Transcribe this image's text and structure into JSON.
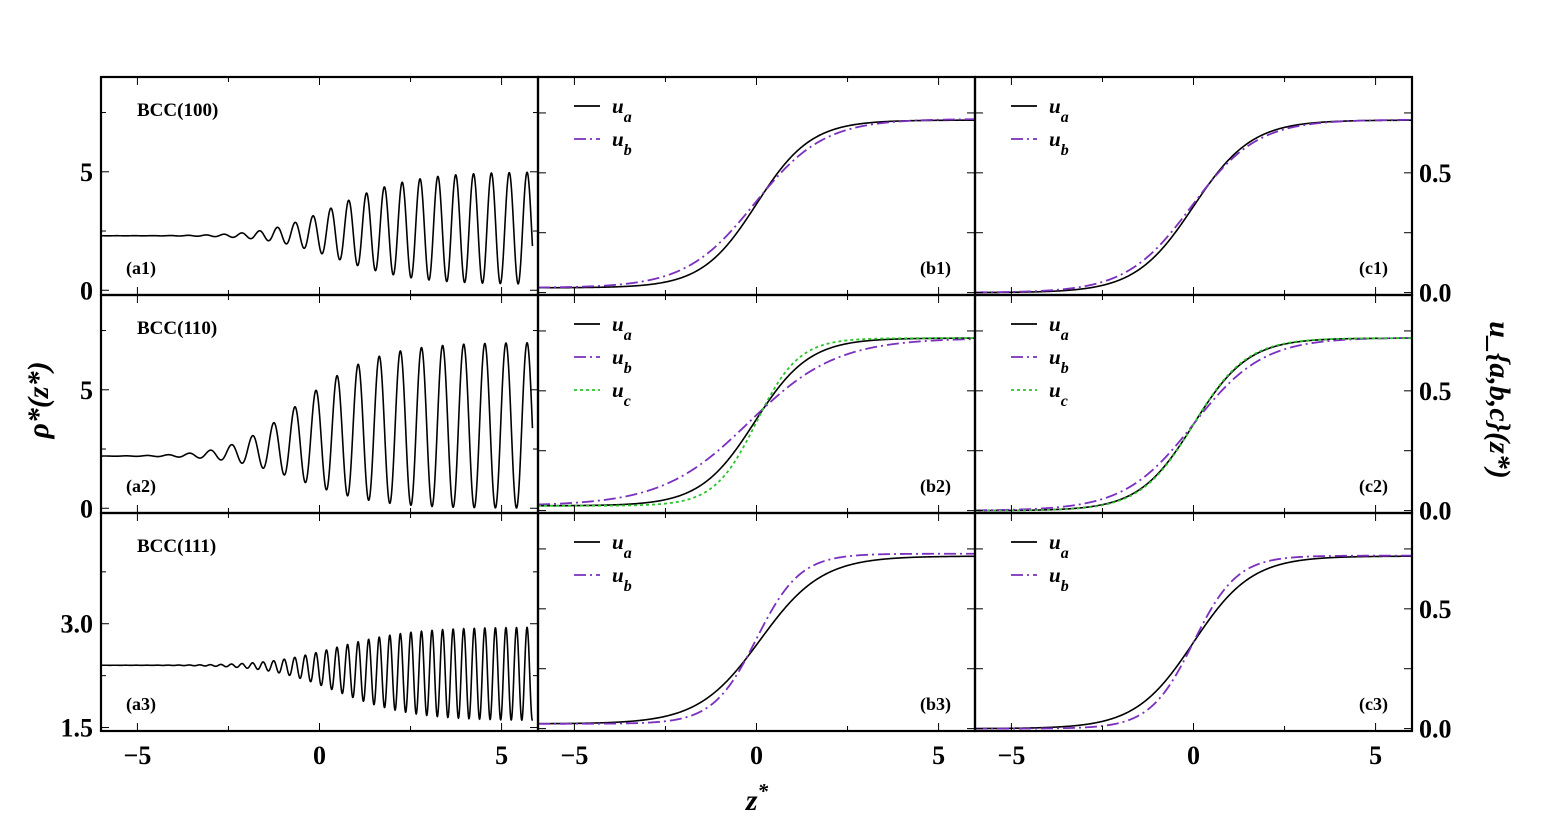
{
  "chart_data": {
    "type": "line",
    "xlabel": "z*",
    "ylabel_left": "ρ*(z*)",
    "ylabel_right": "u_{a,b,c}(z*)",
    "xlim": [
      -6.0,
      6.0
    ],
    "x_ticks": [
      -5,
      0,
      5
    ],
    "x_tick_labels": [
      "−5",
      "0",
      "5"
    ],
    "grid": false,
    "legend_position": "top-left",
    "colors": {
      "u_a": "#000000",
      "u_b": "#7B2FBE",
      "u_c": "#2DC42D",
      "rho": "#000000"
    },
    "rows": [
      {
        "title": "BCC(100)",
        "density": {
          "label": "(a1)",
          "ylim": [
            -0.2,
            9.0
          ],
          "y_ticks": [
            0,
            5
          ],
          "y_tick_labels": [
            "0",
            "5"
          ],
          "liquid_value": 2.3,
          "peak_max": 5.0,
          "trough_min": 0.25,
          "period": 0.49,
          "interface_center": 0.0
        },
        "order_b": {
          "label": "(b1)",
          "ylim": [
            -0.01,
            0.9
          ],
          "legend": [
            "u_a",
            "u_b"
          ],
          "series": [
            {
              "name": "u_a",
              "low": 0.02,
              "high": 0.72,
              "center": 0.0,
              "width": 0.75
            },
            {
              "name": "u_b",
              "low": 0.02,
              "high": 0.725,
              "center": -0.05,
              "width": 0.95
            }
          ]
        },
        "order_c": {
          "label": "(c1)",
          "ylim": [
            -0.01,
            0.9
          ],
          "y_ticks": [
            0.0,
            0.5
          ],
          "y_tick_labels": [
            "0.0",
            "0.5"
          ],
          "legend": [
            "u_a",
            "u_b"
          ],
          "series": [
            {
              "name": "u_a",
              "low": 0.0,
              "high": 0.72,
              "center": 0.0,
              "width": 0.8
            },
            {
              "name": "u_b",
              "low": 0.0,
              "high": 0.722,
              "center": -0.05,
              "width": 0.9
            }
          ]
        }
      },
      {
        "title": "BCC(110)",
        "density": {
          "label": "(a2)",
          "ylim": [
            -0.2,
            9.0
          ],
          "y_ticks": [
            0,
            5
          ],
          "y_tick_labels": [
            "0",
            "5"
          ],
          "liquid_value": 2.2,
          "peak_max": 7.0,
          "trough_min": 0.0,
          "period": 0.58,
          "interface_center": -1.0
        },
        "order_b": {
          "label": "(b2)",
          "ylim": [
            -0.01,
            0.9
          ],
          "legend": [
            "u_a",
            "u_b",
            "u_c"
          ],
          "series": [
            {
              "name": "u_a",
              "low": 0.02,
              "high": 0.72,
              "center": -0.05,
              "width": 0.75
            },
            {
              "name": "u_b",
              "low": 0.02,
              "high": 0.72,
              "center": -0.2,
              "width": 1.2
            },
            {
              "name": "u_c",
              "low": 0.02,
              "high": 0.72,
              "center": 0.0,
              "width": 0.58
            }
          ]
        },
        "order_c": {
          "label": "(c2)",
          "ylim": [
            -0.01,
            0.9
          ],
          "y_ticks": [
            0.0,
            0.5
          ],
          "y_tick_labels": [
            "0.0",
            "0.5"
          ],
          "legend": [
            "u_a",
            "u_b",
            "u_c"
          ],
          "series": [
            {
              "name": "u_a",
              "low": 0.0,
              "high": 0.72,
              "center": 0.0,
              "width": 0.75
            },
            {
              "name": "u_b",
              "low": 0.0,
              "high": 0.722,
              "center": 0.0,
              "width": 0.95
            },
            {
              "name": "u_c",
              "low": 0.0,
              "high": 0.72,
              "center": 0.0,
              "width": 0.73
            }
          ]
        }
      },
      {
        "title": "BCC(111)",
        "density": {
          "label": "(a3)",
          "ylim": [
            1.45,
            4.6
          ],
          "y_ticks": [
            1.5,
            3.0
          ],
          "y_tick_labels": [
            "1.5",
            "3.0"
          ],
          "liquid_value": 2.4,
          "peak_max": 2.95,
          "trough_min": 1.6,
          "period": 0.29,
          "interface_center": 0.0
        },
        "order_b": {
          "label": "(b3)",
          "ylim": [
            -0.01,
            0.9
          ],
          "legend": [
            "u_a",
            "u_b"
          ],
          "series": [
            {
              "name": "u_a",
              "low": 0.02,
              "high": 0.72,
              "center": 0.1,
              "width": 0.85
            },
            {
              "name": "u_b",
              "low": 0.02,
              "high": 0.73,
              "center": 0.0,
              "width": 0.6
            }
          ]
        },
        "order_c": {
          "label": "(c3)",
          "ylim": [
            -0.01,
            0.9
          ],
          "y_ticks": [
            0.0,
            0.5
          ],
          "y_tick_labels": [
            "0.0",
            "0.5"
          ],
          "legend": [
            "u_a",
            "u_b"
          ],
          "series": [
            {
              "name": "u_a",
              "low": 0.0,
              "high": 0.72,
              "center": 0.0,
              "width": 0.8
            },
            {
              "name": "u_b",
              "low": 0.0,
              "high": 0.722,
              "center": 0.0,
              "width": 0.6
            }
          ]
        }
      }
    ]
  }
}
